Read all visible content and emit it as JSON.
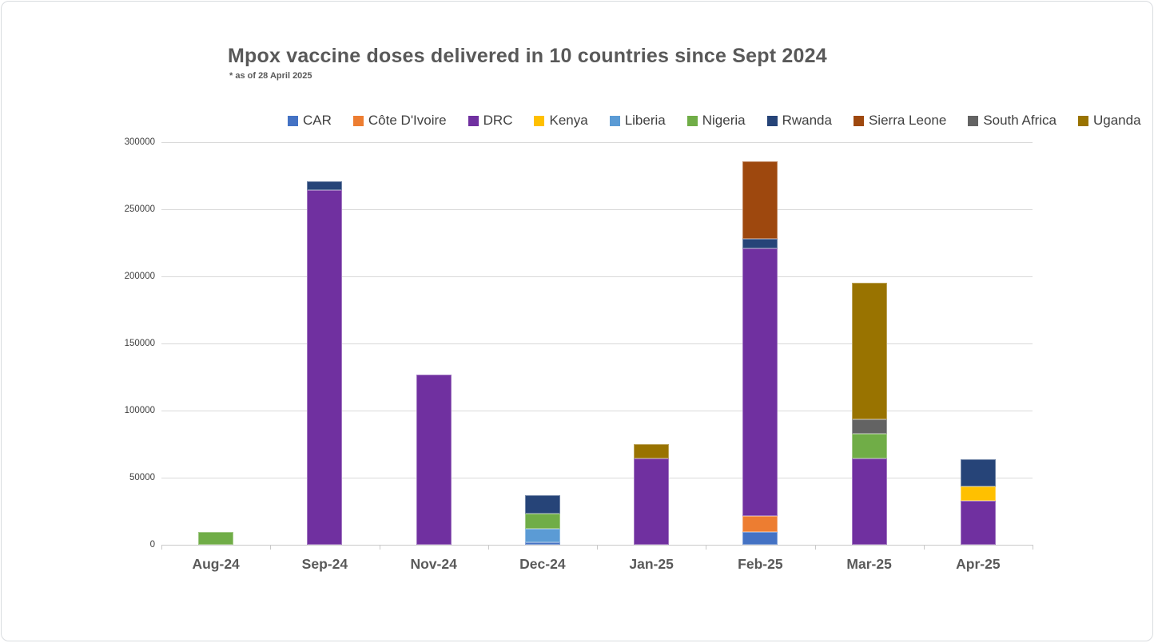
{
  "chart_data": {
    "type": "bar",
    "stacked": true,
    "title": "Mpox vaccine doses delivered in 10 countries since Sept 2024",
    "subtitle": "* as of 28 April 2025",
    "categories": [
      "Aug-24",
      "Sep-24",
      "Nov-24",
      "Dec-24",
      "Jan-25",
      "Feb-25",
      "Mar-25",
      "Apr-25"
    ],
    "series": [
      {
        "name": "CAR",
        "color": "#4472C4",
        "values": [
          0,
          0,
          0,
          2000,
          0,
          9500,
          0,
          0
        ]
      },
      {
        "name": "Côte D'Ivoire",
        "color": "#ED7D31",
        "values": [
          0,
          0,
          0,
          0,
          0,
          12000,
          0,
          0
        ]
      },
      {
        "name": "DRC",
        "color": "#7030A0",
        "values": [
          0,
          264000,
          127000,
          0,
          64000,
          199500,
          64000,
          33000
        ]
      },
      {
        "name": "Kenya",
        "color": "#FFC000",
        "values": [
          0,
          0,
          0,
          0,
          0,
          0,
          0,
          10500
        ]
      },
      {
        "name": "Liberia",
        "color": "#5B9BD5",
        "values": [
          0,
          0,
          0,
          10000,
          0,
          0,
          0,
          0
        ]
      },
      {
        "name": "Nigeria",
        "color": "#70AD47",
        "values": [
          9500,
          0,
          0,
          11500,
          0,
          0,
          19000,
          0
        ]
      },
      {
        "name": "Rwanda",
        "color": "#264478",
        "values": [
          0,
          7000,
          0,
          13500,
          0,
          7000,
          0,
          20000
        ]
      },
      {
        "name": "Sierra Leone",
        "color": "#9E480E",
        "values": [
          0,
          0,
          0,
          0,
          0,
          58000,
          0,
          0
        ]
      },
      {
        "name": "South Africa",
        "color": "#636363",
        "values": [
          0,
          0,
          0,
          0,
          0,
          0,
          10500,
          0
        ]
      },
      {
        "name": "Uganda",
        "color": "#997300",
        "values": [
          0,
          0,
          0,
          0,
          11000,
          0,
          102000,
          0
        ]
      }
    ],
    "ylim": [
      0,
      300000
    ],
    "ytick_interval": 50000,
    "ytick_labels": [
      "300000",
      "250000",
      "200000",
      "150000",
      "100000",
      "50000",
      "0"
    ],
    "grid": true,
    "legend_position": "top",
    "colors": {
      "title_text": "#595959",
      "axis_text": "#404040",
      "gridline": "#D9D9D9",
      "background": "#FFFFFF"
    }
  }
}
